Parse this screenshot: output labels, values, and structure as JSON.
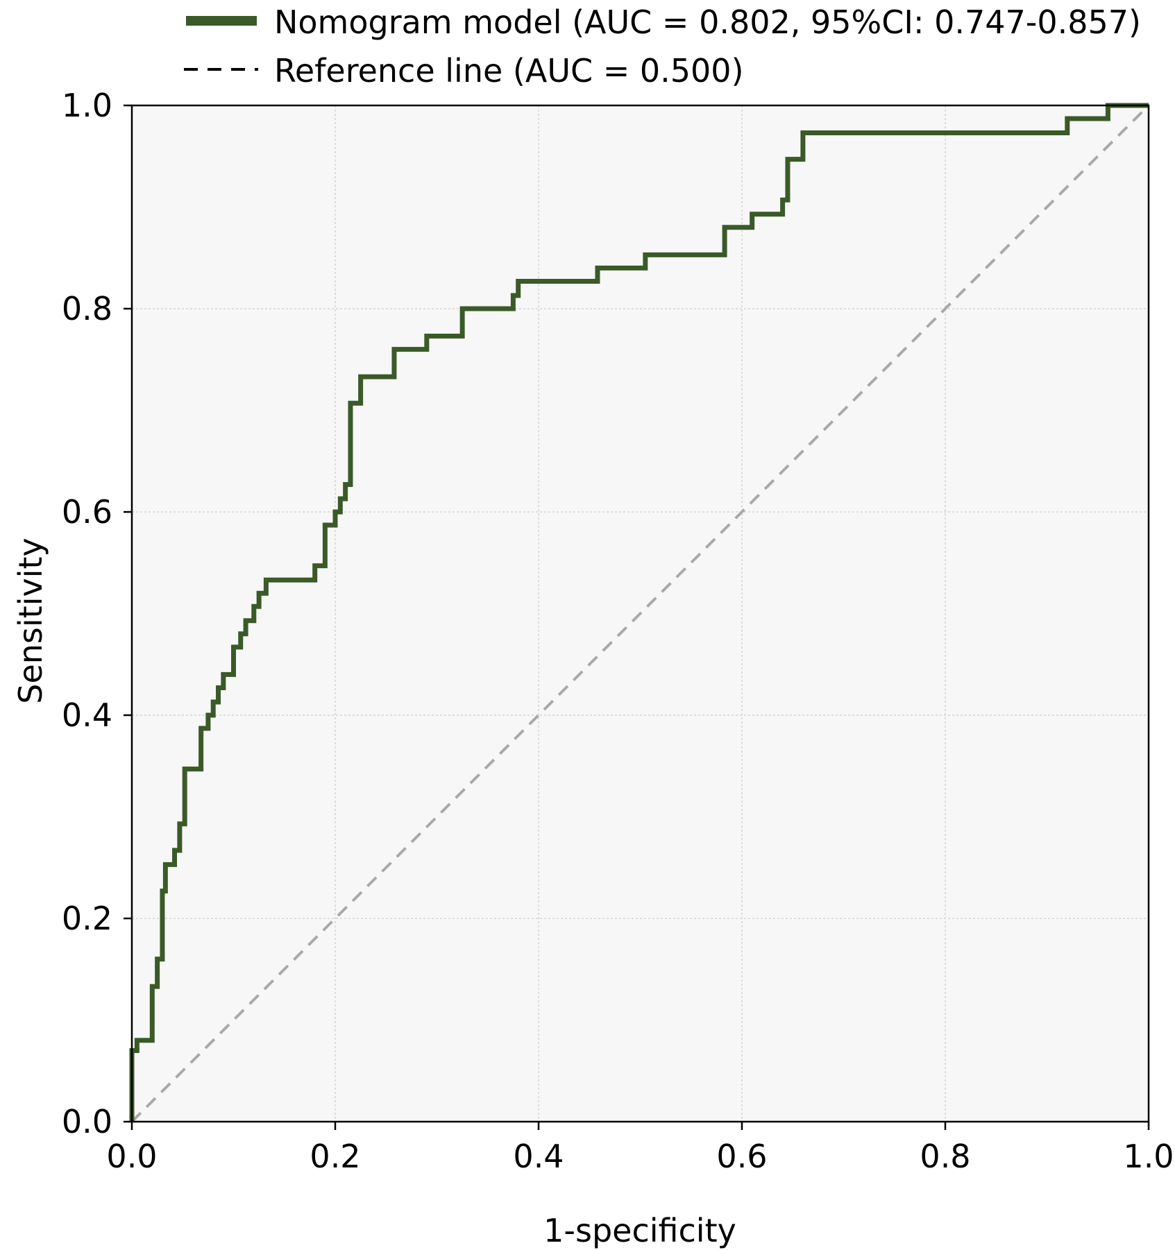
{
  "chart_data": {
    "type": "line",
    "xlabel": "1-specificity",
    "ylabel": "Sensitivity",
    "xlim": [
      0,
      1
    ],
    "ylim": [
      0,
      1
    ],
    "x_ticks": [
      "0.0",
      "0.2",
      "0.4",
      "0.6",
      "0.8",
      "1.0"
    ],
    "y_ticks": [
      "0.0",
      "0.2",
      "0.4",
      "0.6",
      "0.8",
      "1.0"
    ],
    "grid": true,
    "legend_position": "top",
    "series": [
      {
        "name": "Nomogram model (AUC = 0.802, 95%CI: 0.747-0.857)",
        "color": "#3a5a27",
        "style": "solid",
        "x": [
          0.0,
          0.0,
          0.005,
          0.005,
          0.02,
          0.02,
          0.025,
          0.025,
          0.03,
          0.03,
          0.033,
          0.033,
          0.042,
          0.042,
          0.047,
          0.047,
          0.052,
          0.052,
          0.068,
          0.068,
          0.075,
          0.075,
          0.08,
          0.08,
          0.085,
          0.085,
          0.09,
          0.09,
          0.1,
          0.1,
          0.107,
          0.107,
          0.112,
          0.112,
          0.12,
          0.12,
          0.125,
          0.125,
          0.132,
          0.132,
          0.14,
          0.14,
          0.18,
          0.18,
          0.19,
          0.19,
          0.2,
          0.2,
          0.205,
          0.205,
          0.21,
          0.21,
          0.215,
          0.215,
          0.225,
          0.225,
          0.258,
          0.258,
          0.29,
          0.29,
          0.325,
          0.325,
          0.375,
          0.375,
          0.38,
          0.38,
          0.458,
          0.458,
          0.505,
          0.505,
          0.583,
          0.583,
          0.61,
          0.61,
          0.64,
          0.64,
          0.645,
          0.645,
          0.66,
          0.66,
          0.92,
          0.92,
          0.96,
          0.96,
          1.0
        ],
        "y": [
          0.0,
          0.07,
          0.07,
          0.08,
          0.08,
          0.133,
          0.133,
          0.16,
          0.16,
          0.227,
          0.227,
          0.253,
          0.253,
          0.267,
          0.267,
          0.293,
          0.293,
          0.347,
          0.347,
          0.387,
          0.387,
          0.4,
          0.4,
          0.413,
          0.413,
          0.427,
          0.427,
          0.44,
          0.44,
          0.467,
          0.467,
          0.48,
          0.48,
          0.493,
          0.493,
          0.507,
          0.507,
          0.52,
          0.52,
          0.533,
          0.533,
          0.533,
          0.533,
          0.547,
          0.547,
          0.587,
          0.587,
          0.6,
          0.6,
          0.613,
          0.613,
          0.627,
          0.627,
          0.707,
          0.707,
          0.733,
          0.733,
          0.76,
          0.76,
          0.773,
          0.773,
          0.8,
          0.8,
          0.813,
          0.813,
          0.827,
          0.827,
          0.84,
          0.84,
          0.853,
          0.853,
          0.88,
          0.88,
          0.893,
          0.893,
          0.907,
          0.907,
          0.947,
          0.947,
          0.973,
          0.973,
          0.987,
          0.987,
          1.0,
          1.0
        ]
      },
      {
        "name": "Reference line (AUC = 0.500)",
        "color": "#a9a9a9",
        "style": "dashed",
        "x": [
          0,
          1
        ],
        "y": [
          0,
          1
        ]
      }
    ]
  }
}
